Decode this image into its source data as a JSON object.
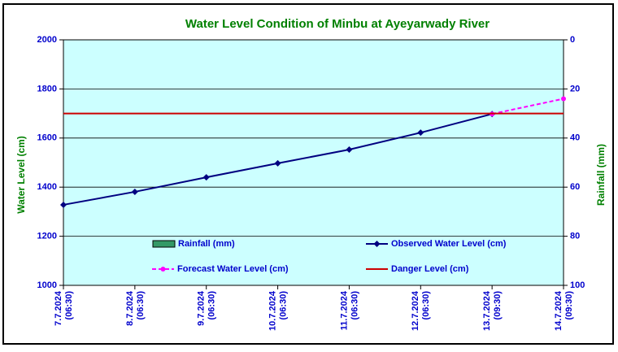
{
  "chart_data": {
    "type": "line",
    "title": "Water Level Condition of Minbu at Ayeyarwady River",
    "ylabel": "Water Level (cm)",
    "y2label": "Rainfall (mm)",
    "categories": [
      [
        "7.7.2024",
        "(06:30)"
      ],
      [
        "8.7.2024",
        "(06:30)"
      ],
      [
        "9.7.2024",
        "(06:30)"
      ],
      [
        "10.7.2024",
        "(06:30)"
      ],
      [
        "11.7.2024",
        "(06:30)"
      ],
      [
        "12.7.2024",
        "(06:30)"
      ],
      [
        "13.7.2024",
        "(09:30)"
      ],
      [
        "14.7.2024",
        "(09:30)"
      ]
    ],
    "series": [
      {
        "name": "Rainfall (mm)",
        "color": "#339966",
        "kind": "bar",
        "axis": "y2",
        "values": [
          null,
          null,
          null,
          null,
          null,
          null,
          null,
          null
        ]
      },
      {
        "name": "Observed Water Level (cm)",
        "color": "#000080",
        "kind": "line",
        "marker": "diamond",
        "values": [
          1328,
          1381,
          1440,
          1497,
          1553,
          1622,
          1698,
          null
        ]
      },
      {
        "name": "Forecast Water Level (cm)",
        "color": "#ff00ff",
        "kind": "line",
        "dashed": true,
        "marker": "circle",
        "values": [
          null,
          null,
          null,
          null,
          null,
          null,
          1698,
          1760
        ]
      },
      {
        "name": "Danger Level (cm)",
        "color": "#cc0000",
        "kind": "line",
        "values": [
          1700,
          1700,
          1700,
          1700,
          1700,
          1700,
          1700,
          1700
        ]
      }
    ],
    "ylim": [
      1000,
      2000
    ],
    "yticks": [
      1000,
      1200,
      1400,
      1600,
      1800,
      2000
    ],
    "y2lim": [
      100,
      0
    ],
    "y2ticks": [
      0,
      20,
      40,
      60,
      80,
      100
    ],
    "grid": true,
    "background": "#ccffff"
  }
}
